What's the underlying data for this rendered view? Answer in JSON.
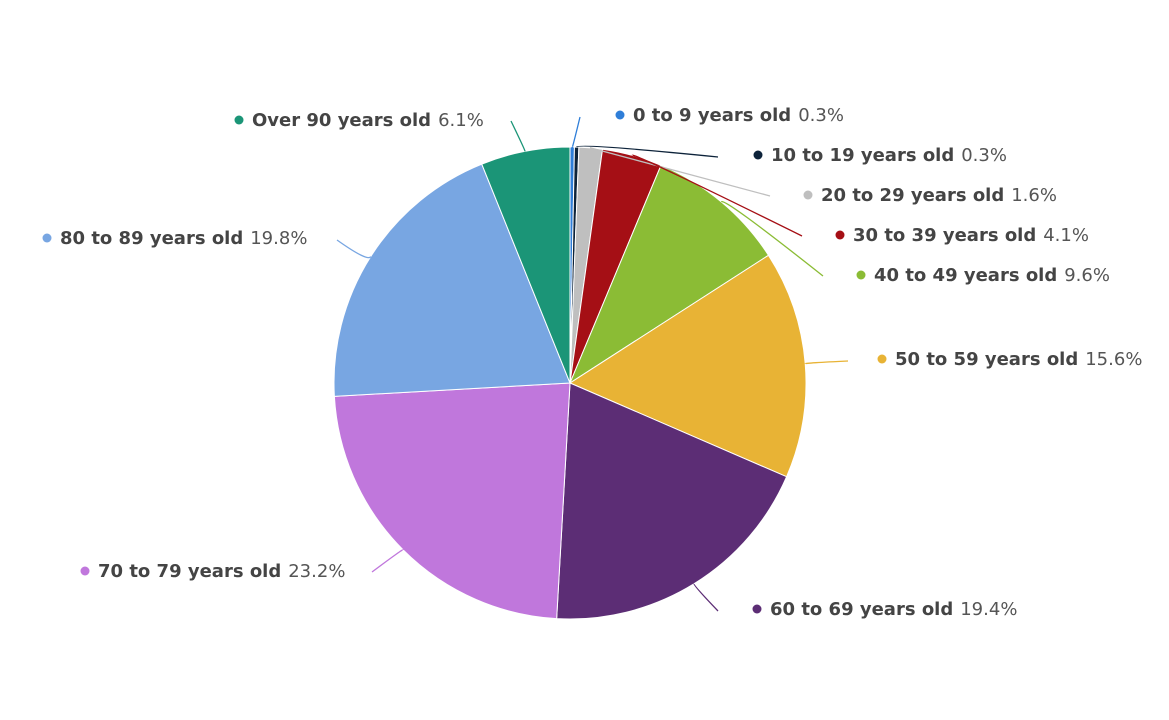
{
  "chart_data": {
    "type": "pie",
    "title": "",
    "legend": "none",
    "start_angle_deg": 0,
    "direction": "clockwise",
    "slices": [
      {
        "label": "0 to 9 years old",
        "value": 0.3,
        "value_text": "0.3%",
        "color": "#2f7ed8"
      },
      {
        "label": "10 to 19 years old",
        "value": 0.3,
        "value_text": "0.3%",
        "color": "#0d233a"
      },
      {
        "label": "20 to 29 years old",
        "value": 1.6,
        "value_text": "1.6%",
        "color": "#bfbfbf"
      },
      {
        "label": "30 to 39 years old",
        "value": 4.1,
        "value_text": "4.1%",
        "color": "#a50f15"
      },
      {
        "label": "40 to 49 years old",
        "value": 9.6,
        "value_text": "9.6%",
        "color": "#8bbc35"
      },
      {
        "label": "50 to 59 years old",
        "value": 15.6,
        "value_text": "15.6%",
        "color": "#e8b335"
      },
      {
        "label": "60 to 69 years old",
        "value": 19.4,
        "value_text": "19.4%",
        "color": "#5c2d75"
      },
      {
        "label": "70 to 79 years old",
        "value": 23.2,
        "value_text": "23.2%",
        "color": "#c077dc"
      },
      {
        "label": "80 to 89 years old",
        "value": 19.8,
        "value_text": "19.8%",
        "color": "#78a6e2"
      },
      {
        "label": "Over 90 years old",
        "value": 6.1,
        "value_text": "6.1%",
        "color": "#1b9577"
      }
    ]
  }
}
